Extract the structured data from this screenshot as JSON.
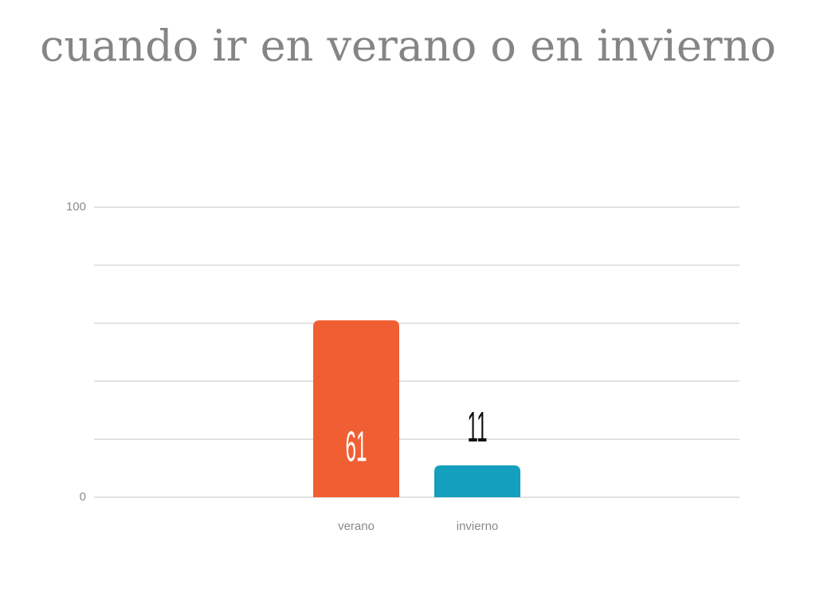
{
  "chart_data": {
    "type": "bar",
    "title": "cuando ir en verano o en invierno",
    "categories": [
      "verano",
      "invierno"
    ],
    "values": [
      61,
      11
    ],
    "colors": [
      "#f05f33",
      "#139fbd"
    ],
    "ylim": [
      0,
      100
    ],
    "yticks": [
      0,
      100
    ],
    "grid_lines": [
      0,
      20,
      40,
      60,
      80,
      100
    ],
    "grid": true
  }
}
